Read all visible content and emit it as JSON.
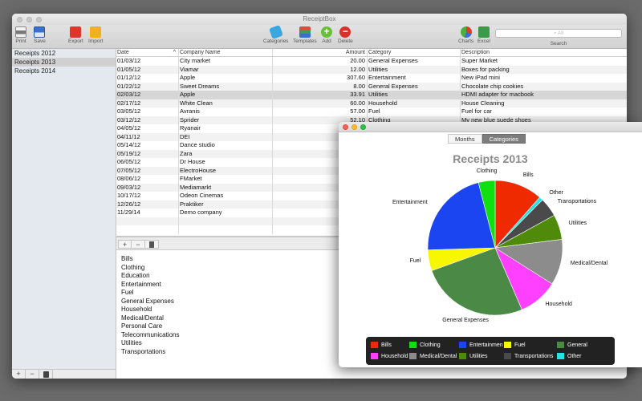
{
  "window": {
    "title": "ReceiptBox"
  },
  "toolbar": {
    "print": "Print",
    "save": "Save",
    "export": "Export",
    "import": "Import",
    "categories": "Categories",
    "templates": "Templates",
    "add": "Add",
    "delete": "Delete",
    "charts": "Charts",
    "excel": "Excel",
    "search_placeholder": "All",
    "search": "Search"
  },
  "sidebar": {
    "items": [
      "Receipts 2012",
      "Receipts 2013",
      "Receipts 2014"
    ]
  },
  "table": {
    "headers": {
      "date": "Date",
      "company": "Company Name",
      "amount": "Amount",
      "category": "Category",
      "description": "Description"
    },
    "rows": [
      [
        "01/03/12",
        "City market",
        "20.00",
        "General Expenses",
        "Super Market"
      ],
      [
        "01/05/12",
        "Viamar",
        "12.00",
        "Utilities",
        "Boxes for packing"
      ],
      [
        "01/12/12",
        "Apple",
        "307.60",
        "Entertainment",
        "New iPad mini"
      ],
      [
        "01/22/12",
        "Sweet Dreams",
        "8.00",
        "General Expenses",
        "Chocolate chip cookies"
      ],
      [
        "02/03/12",
        "Apple",
        "33.91",
        "Utilities",
        "HDMI adapter for macbook"
      ],
      [
        "02/17/12",
        "White Clean",
        "60.00",
        "Household",
        "House Cleaning"
      ],
      [
        "03/05/12",
        "Avranis",
        "57.00",
        "Fuel",
        "Fuel for car"
      ],
      [
        "03/12/12",
        "Sprider",
        "52.10",
        "Clothing",
        "My new blue suede shoes"
      ],
      [
        "04/05/12",
        "Ryanair",
        "",
        "",
        ""
      ],
      [
        "04/11/12",
        "DEI",
        "",
        "",
        ""
      ],
      [
        "05/14/12",
        "Dance studio",
        "",
        "",
        ""
      ],
      [
        "05/19/12",
        "Zara",
        "",
        "",
        ""
      ],
      [
        "06/05/12",
        "Dr House",
        "",
        "",
        ""
      ],
      [
        "07/05/12",
        "ElectroHouse",
        "",
        "",
        ""
      ],
      [
        "08/06/12",
        "FMarket",
        "",
        "",
        ""
      ],
      [
        "09/03/12",
        "Mediamarkt",
        "",
        "",
        ""
      ],
      [
        "10/17/12",
        "Odeon Cinemas",
        "",
        "",
        ""
      ],
      [
        "12/26/12",
        "Praktiker",
        "",
        "",
        ""
      ],
      [
        "11/29/14",
        "Demo company",
        "",
        "",
        ""
      ],
      [
        "",
        "",
        "",
        "",
        ""
      ],
      [
        "",
        "",
        "",
        "",
        ""
      ]
    ]
  },
  "categories": [
    "Bills",
    "Clothing",
    "Education",
    "Entertainment",
    "Fuel",
    "General Expenses",
    "Household",
    "Medical/Dental",
    "Personal Care",
    "Telecommunications",
    "Utilities",
    "Transportations"
  ],
  "chart_window": {
    "tabs": [
      "Months",
      "Categories"
    ],
    "active_tab": "Categories"
  },
  "chart_data": {
    "type": "pie",
    "title": "Receipts 2013",
    "slices": [
      {
        "name": "Bills",
        "value": 11.5,
        "color": "#f02a00"
      },
      {
        "name": "Other",
        "value": 0.9,
        "color": "#22e5e5"
      },
      {
        "name": "Transportations",
        "value": 4.6,
        "color": "#4a4a4a"
      },
      {
        "name": "Utilities",
        "value": 6.0,
        "color": "#4f8a0a"
      },
      {
        "name": "Medical/Dental",
        "value": 11.0,
        "color": "#8c8c8c"
      },
      {
        "name": "Household",
        "value": 9.5,
        "color": "#ff40ff"
      },
      {
        "name": "General Expenses",
        "value": 26.0,
        "color": "#4a8a46"
      },
      {
        "name": "Fuel",
        "value": 5.0,
        "color": "#f7f700"
      },
      {
        "name": "Entertainment",
        "value": 21.5,
        "color": "#1a45f0"
      },
      {
        "name": "Clothing",
        "value": 4.0,
        "color": "#10e010"
      }
    ],
    "legend": [
      {
        "name": "Bills",
        "color": "#f02a00"
      },
      {
        "name": "Clothing",
        "color": "#10e010"
      },
      {
        "name": "Entertainmen",
        "color": "#1a45f0"
      },
      {
        "name": "Fuel",
        "color": "#f7f700"
      },
      {
        "name": "General",
        "color": "#4a8a46"
      },
      {
        "name": "Household",
        "color": "#ff40ff"
      },
      {
        "name": "Medical/Dental",
        "color": "#8c8c8c"
      },
      {
        "name": "Utilities",
        "color": "#4f8a0a"
      },
      {
        "name": "Transportations",
        "color": "#4a4a4a"
      },
      {
        "name": "Other",
        "color": "#22e5e5"
      }
    ],
    "legend_position": "bottom"
  }
}
